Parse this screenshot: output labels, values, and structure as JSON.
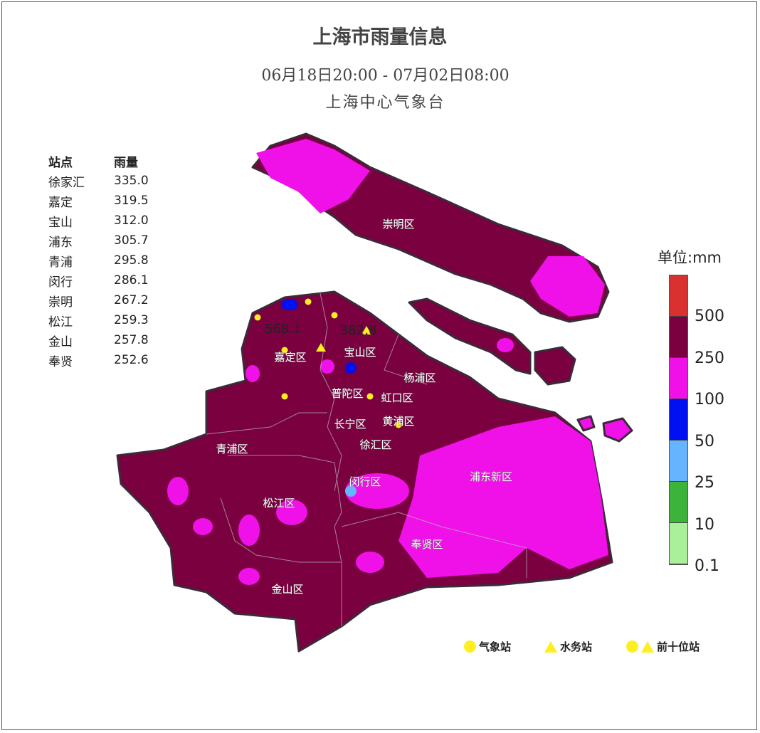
{
  "title": "上海市雨量信息",
  "period": "06月18日20:00 - 07月02日08:00",
  "organization": "上海中心气象台",
  "stations_table": {
    "headers": [
      "站点",
      "雨量"
    ],
    "rows": [
      [
        "徐家汇",
        "335.0"
      ],
      [
        "嘉定",
        "319.5"
      ],
      [
        "宝山",
        "312.0"
      ],
      [
        "浦东",
        "305.7"
      ],
      [
        "青浦",
        "295.8"
      ],
      [
        "闵行",
        "286.1"
      ],
      [
        "崇明",
        "267.2"
      ],
      [
        "松江",
        "259.3"
      ],
      [
        "金山",
        "257.8"
      ],
      [
        "奉贤",
        "252.6"
      ]
    ]
  },
  "districts": [
    "崇明区",
    "嘉定区",
    "宝山区",
    "杨浦区",
    "普陀区",
    "虹口区",
    "长宁区",
    "黄浦区",
    "徐汇区",
    "青浦区",
    "闵行区",
    "浦东新区",
    "松江区",
    "奉贤区",
    "金山区"
  ],
  "max_labels": [
    "568.1",
    "382.8"
  ],
  "legend": {
    "title": "单位:mm",
    "bins": [
      {
        "label": "500",
        "color": "#d93030"
      },
      {
        "label": "250",
        "color": "#7a0040"
      },
      {
        "label": "100",
        "color": "#f010e8"
      },
      {
        "label": "50",
        "color": "#0010f0"
      },
      {
        "label": "25",
        "color": "#66b4ff"
      },
      {
        "label": "10",
        "color": "#3cb43c"
      },
      {
        "label": "0.1",
        "color": "#aaf09a"
      }
    ]
  },
  "marker_key": {
    "weather_station": "气象站",
    "water_station": "水务站",
    "top_ten": "前十位站"
  },
  "colors": {
    "base": "#7a0040",
    "pink": "#f010e8",
    "marker": "#ffee22"
  }
}
